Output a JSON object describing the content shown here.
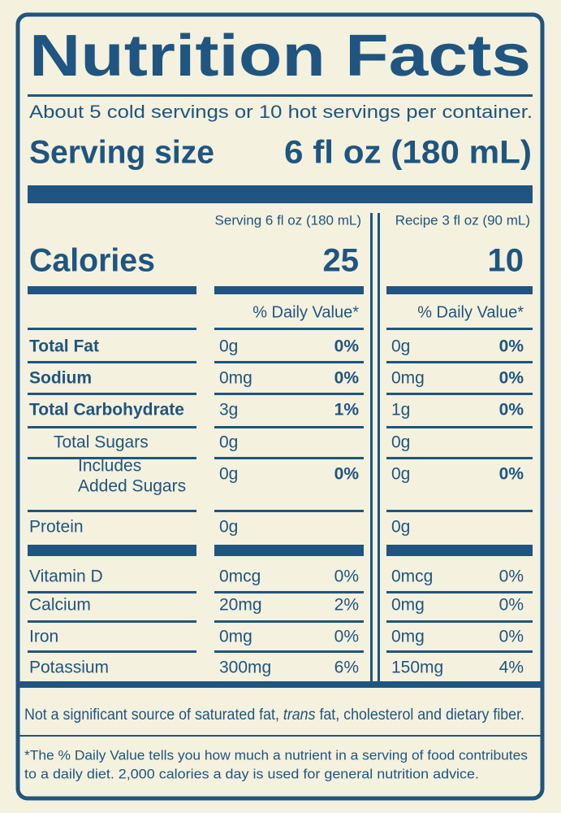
{
  "title": "Nutrition Facts",
  "servings_per_container": "About 5 cold servings or 10 hot servings per container.",
  "serving_size": {
    "label": "Serving size",
    "value": "6 fl oz (180 mL)"
  },
  "calories_label": "Calories",
  "columns": [
    {
      "header": "Serving 6 fl oz (180 mL)",
      "calories": "25",
      "dv_header": "% Daily Value*"
    },
    {
      "header": "Recipe 3 fl oz (90 mL)",
      "calories": "10",
      "dv_header": "% Daily Value*"
    }
  ],
  "nutrients": [
    {
      "name": "Total Fat",
      "serving": [
        "0g",
        "0%"
      ],
      "recipe": [
        "0g",
        "0%"
      ]
    },
    {
      "name": "Sodium",
      "serving": [
        "0mg",
        "0%"
      ],
      "recipe": [
        "0mg",
        "0%"
      ]
    },
    {
      "name": "Total Carbohydrate",
      "serving": [
        "3g",
        "1%"
      ],
      "recipe": [
        "1g",
        "0%"
      ]
    },
    {
      "name": "Total Sugars",
      "serving": [
        "0g"
      ],
      "recipe": [
        "0g"
      ]
    },
    {
      "name": [
        "Includes",
        "Added Sugars"
      ],
      "serving": [
        "0g",
        "0%"
      ],
      "recipe": [
        "0g",
        "0%"
      ]
    },
    {
      "name": "Protein",
      "serving": [
        "0g"
      ],
      "recipe": [
        "0g"
      ]
    },
    {
      "name": "Vitamin D",
      "serving": [
        "0mcg",
        "0%"
      ],
      "recipe": [
        "0mcg",
        "0%"
      ]
    },
    {
      "name": "Calcium",
      "serving": [
        "20mg",
        "2%"
      ],
      "recipe": [
        "0mg",
        "0%"
      ]
    },
    {
      "name": "Iron",
      "serving": [
        "0mg",
        "0%"
      ],
      "recipe": [
        "0mg",
        "0%"
      ]
    },
    {
      "name": "Potassium",
      "serving": [
        "300mg",
        "6%"
      ],
      "recipe": [
        "150mg",
        "4%"
      ]
    }
  ],
  "footnote_sources": [
    "Not a significant source of saturated fat, ",
    "trans",
    " fat, cholesterol and dietary fiber."
  ],
  "footnote_dv": [
    "*The % Daily Value tells you how much a nutrient in a serving of food contributes",
    "to a daily diet. 2,000 calories a day is used for general nutrition advice."
  ]
}
